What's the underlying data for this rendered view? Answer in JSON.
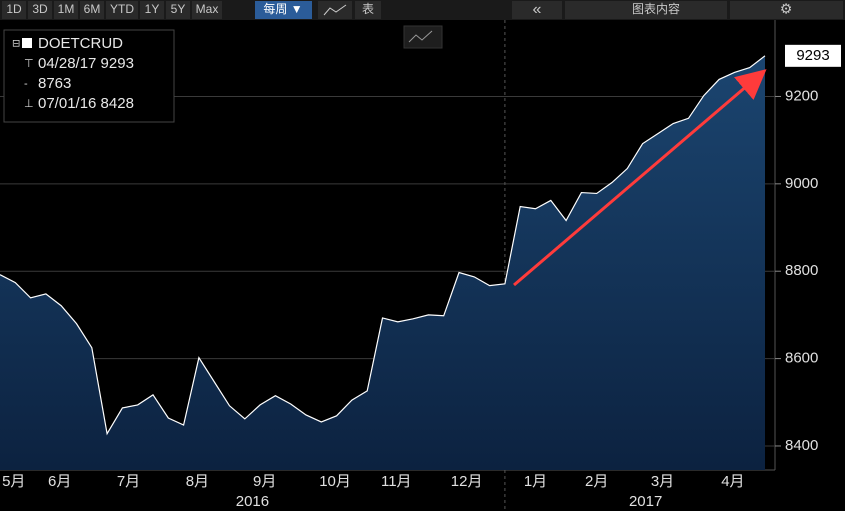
{
  "toolbar": {
    "ranges": [
      "1D",
      "3D",
      "1M",
      "6M",
      "YTD",
      "1Y",
      "5Y",
      "Max"
    ],
    "frequency": "每周 ▼",
    "table": "表",
    "back": "«",
    "chart_content": "图表内容"
  },
  "chart_data": {
    "type": "area",
    "legend": {
      "ticker": "DOETCRUD",
      "high": "04/28/17 9293",
      "average": "8763",
      "low": "07/01/16 8428"
    },
    "values": [
      8792,
      8774,
      8739,
      8748,
      8721,
      8680,
      8625,
      8428,
      8487,
      8494,
      8517,
      8464,
      8448,
      8602,
      8547,
      8492,
      8462,
      8494,
      8515,
      8496,
      8471,
      8455,
      8469,
      8505,
      8526,
      8693,
      8684,
      8691,
      8700,
      8698,
      8797,
      8787,
      8767,
      8771,
      8948,
      8943,
      8962,
      8916,
      8980,
      8978,
      9003,
      9035,
      9092,
      9115,
      9138,
      9150,
      9202,
      9239,
      9255,
      9266,
      9293
    ],
    "color": "#ffffff",
    "fill": "#143558",
    "xlim": [
      0,
      50
    ],
    "xticks": [
      {
        "value": 0.9,
        "label": "5月"
      },
      {
        "value": 3.9,
        "label": "6月"
      },
      {
        "value": 8.4,
        "label": "7月"
      },
      {
        "value": 12.9,
        "label": "8月"
      },
      {
        "value": 17.3,
        "label": "9月"
      },
      {
        "value": 21.9,
        "label": "10月"
      },
      {
        "value": 25.9,
        "label": "11月"
      },
      {
        "value": 30.5,
        "label": "12月"
      },
      {
        "value": 35.0,
        "label": "1月"
      },
      {
        "value": 39.0,
        "label": "2月"
      },
      {
        "value": 43.3,
        "label": "3月"
      },
      {
        "value": 47.9,
        "label": "4月"
      }
    ],
    "years": [
      {
        "value": 16.5,
        "label": "2016"
      },
      {
        "value": 42.2,
        "label": "2017"
      }
    ],
    "year_divider": 33.0,
    "ylim": [
      8345,
      9375
    ],
    "yticks": [
      8400,
      8600,
      8800,
      9000,
      9200
    ],
    "grid": true
  }
}
